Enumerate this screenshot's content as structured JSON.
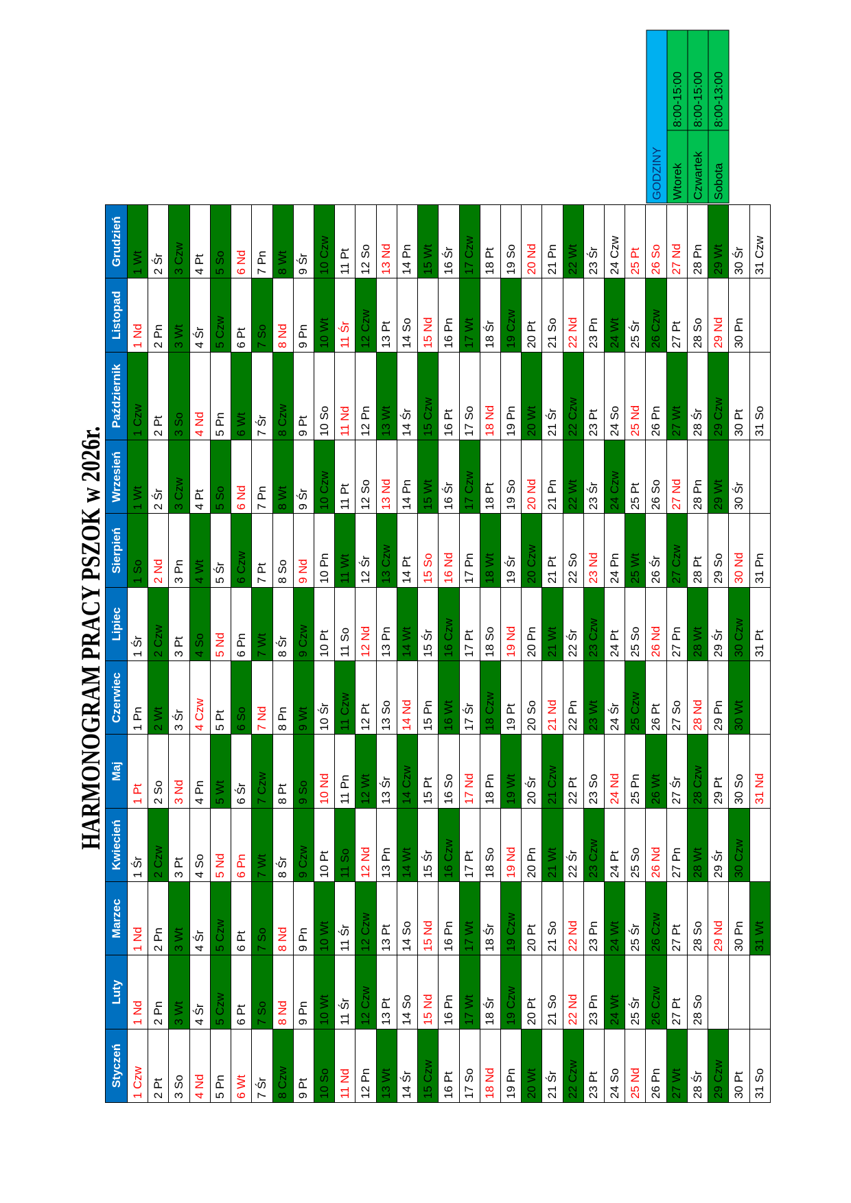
{
  "title": "HARMONOGRAM PRACY PSZOK w 2026r.",
  "colors": {
    "header": "#0070c0",
    "open_day": "#007a00",
    "holiday_text": "#ff0000",
    "hours_header": "#00b0f0",
    "hours_rows": "#00c050"
  },
  "hours": {
    "header": "GODZINY",
    "rows": [
      {
        "day": "Wtorek",
        "time": "8:00-15:00"
      },
      {
        "day": "Czwartek",
        "time": "8:00-15:00"
      },
      {
        "day": "Sobota",
        "time": "8:00-13:00"
      }
    ]
  },
  "months": [
    {
      "name": "Styczeń",
      "days": [
        "1 Czw",
        "2 Pt",
        "3 So",
        "4 Nd",
        "5 Pn",
        "6 Wt",
        "7 Śr",
        "8 Czw",
        "9 Pt",
        "10 So",
        "11 Nd",
        "12 Pn",
        "13 Wt",
        "14 Śr",
        "15 Czw",
        "16 Pt",
        "17 So",
        "18 Nd",
        "19 Pn",
        "20 Wt",
        "21 Śr",
        "22 Czw",
        "23 Pt",
        "24 So",
        "25 Nd",
        "26 Pn",
        "27 Wt",
        "28 Śr",
        "29 Czw",
        "30 Pt",
        "31 So"
      ],
      "green": [
        8,
        10,
        13,
        15,
        20,
        22,
        27,
        29
      ],
      "red": [
        1,
        4,
        6,
        11,
        18,
        25
      ]
    },
    {
      "name": "Luty",
      "days": [
        "1 Nd",
        "2 Pn",
        "3 Wt",
        "4 Śr",
        "5 Czw",
        "6 Pt",
        "7 So",
        "8 Nd",
        "9 Pn",
        "10 Wt",
        "11 Śr",
        "12 Czw",
        "13 Pt",
        "14 So",
        "15 Nd",
        "16 Pn",
        "17 Wt",
        "18 Śr",
        "19 Czw",
        "20 Pt",
        "21 So",
        "22 Nd",
        "23 Pn",
        "24 Wt",
        "25 Śr",
        "26 Czw",
        "27 Pt",
        "28 So"
      ],
      "green": [
        3,
        5,
        7,
        10,
        12,
        17,
        19,
        24,
        26
      ],
      "red": [
        1,
        8,
        15,
        22
      ]
    },
    {
      "name": "Marzec",
      "days": [
        "1 Nd",
        "2 Pn",
        "3 Wt",
        "4 Śr",
        "5 Czw",
        "6 Pt",
        "7 So",
        "8 Nd",
        "9 Pn",
        "10 Wt",
        "11 Śr",
        "12 Czw",
        "13 Pt",
        "14 So",
        "15 Nd",
        "16 Pn",
        "17 Wt",
        "18 Śr",
        "19 Czw",
        "20 Pt",
        "21 So",
        "22 Nd",
        "23 Pn",
        "24 Wt",
        "25 Śr",
        "26 Czw",
        "27 Pt",
        "28 So",
        "29 Nd",
        "30 Pn",
        "31 Wt"
      ],
      "green": [
        3,
        5,
        7,
        10,
        12,
        17,
        19,
        24,
        26,
        31
      ],
      "red": [
        1,
        8,
        15,
        22,
        29
      ]
    },
    {
      "name": "Kwiecień",
      "days": [
        "1 Śr",
        "2 Czw",
        "3 Pt",
        "4 So",
        "5 Nd",
        "6 Pn",
        "7 Wt",
        "8 Śr",
        "9 Czw",
        "10 Pt",
        "11 So",
        "12 Nd",
        "13 Pn",
        "14 Wt",
        "15 Śr",
        "16 Czw",
        "17 Pt",
        "18 So",
        "19 Nd",
        "20 Pn",
        "21 Wt",
        "22 Śr",
        "23 Czw",
        "24 Pt",
        "25 So",
        "26 Nd",
        "27 Pn",
        "28 Wt",
        "29 Śr",
        "30 Czw"
      ],
      "green": [
        2,
        7,
        9,
        11,
        14,
        16,
        21,
        23,
        28,
        30
      ],
      "red": [
        5,
        6,
        12,
        19,
        26
      ]
    },
    {
      "name": "Maj",
      "days": [
        "1 Pt",
        "2 So",
        "3 Nd",
        "4 Pn",
        "5 Wt",
        "6 Śr",
        "7 Czw",
        "8 Pt",
        "9 So",
        "10 Nd",
        "11 Pn",
        "12 Wt",
        "13 Śr",
        "14 Czw",
        "15 Pt",
        "16 So",
        "17 Nd",
        "18 Pn",
        "19 Wt",
        "20 Śr",
        "21 Czw",
        "22 Pt",
        "23 So",
        "24 Nd",
        "25 Pn",
        "26 Wt",
        "27 Śr",
        "28 Czw",
        "29 Pt",
        "30 So",
        "31 Nd"
      ],
      "green": [
        5,
        7,
        9,
        12,
        14,
        19,
        21,
        26,
        28
      ],
      "red": [
        1,
        3,
        10,
        17,
        24,
        31
      ]
    },
    {
      "name": "Czerwiec",
      "days": [
        "1 Pn",
        "2 Wt",
        "3 Śr",
        "4 Czw",
        "5 Pt",
        "6 So",
        "7 Nd",
        "8 Pn",
        "9 Wt",
        "10 Śr",
        "11 Czw",
        "12 Pt",
        "13 So",
        "14 Nd",
        "15 Pn",
        "16 Wt",
        "17 Śr",
        "18 Czw",
        "19 Pt",
        "20 So",
        "21 Nd",
        "22 Pn",
        "23 Wt",
        "24 Śr",
        "25 Czw",
        "26 Pt",
        "27 So",
        "28 Nd",
        "29 Pn",
        "30 Wt"
      ],
      "green": [
        2,
        6,
        9,
        11,
        16,
        18,
        23,
        25,
        30
      ],
      "red": [
        4,
        7,
        14,
        21,
        28
      ]
    },
    {
      "name": "Lipiec",
      "days": [
        "1 Śr",
        "2 Czw",
        "3 Pt",
        "4 So",
        "5 Nd",
        "6 Pn",
        "7 Wt",
        "8 Śr",
        "9 Czw",
        "10 Pt",
        "11 So",
        "12 Nd",
        "13 Pn",
        "14 Wt",
        "15 Śr",
        "16 Czw",
        "17 Pt",
        "18 So",
        "19 Nd",
        "20 Pn",
        "21 Wt",
        "22 Śr",
        "23 Czw",
        "24 Pt",
        "25 So",
        "26 Nd",
        "27 Pn",
        "28 Wt",
        "29 Śr",
        "30 Czw",
        "31 Pt"
      ],
      "green": [
        2,
        4,
        7,
        9,
        14,
        16,
        21,
        23,
        28,
        30
      ],
      "red": [
        5,
        12,
        19,
        26
      ]
    },
    {
      "name": "Sierpień",
      "days": [
        "1 So",
        "2 Nd",
        "3 Pn",
        "4 Wt",
        "5 Śr",
        "6 Czw",
        "7 Pt",
        "8 So",
        "9 Nd",
        "10 Pn",
        "11 Wt",
        "12 Śr",
        "13 Czw",
        "14 Pt",
        "15 So",
        "16 Nd",
        "17 Pn",
        "18 Wt",
        "19 Śr",
        "20 Czw",
        "21 Pt",
        "22 So",
        "23 Nd",
        "24 Pn",
        "25 Wt",
        "26 Śr",
        "27 Czw",
        "28 Pt",
        "29 So",
        "30 Nd",
        "31 Pn"
      ],
      "green": [
        1,
        4,
        6,
        11,
        13,
        18,
        20,
        25,
        27
      ],
      "red": [
        2,
        9,
        15,
        16,
        23,
        30
      ]
    },
    {
      "name": "Wrzesień",
      "days": [
        "1 Wt",
        "2 Śr",
        "3 Czw",
        "4 Pt",
        "5 So",
        "6 Nd",
        "7 Pn",
        "8 Wt",
        "9 Śr",
        "10 Czw",
        "11 Pt",
        "12 So",
        "13 Nd",
        "14 Pn",
        "15 Wt",
        "16 Śr",
        "17 Czw",
        "18 Pt",
        "19 So",
        "20 Nd",
        "21 Pn",
        "22 Wt",
        "23 Śr",
        "24 Czw",
        "25 Pt",
        "26 So",
        "27 Nd",
        "28 Pn",
        "29 Wt",
        "30 Śr"
      ],
      "green": [
        1,
        3,
        5,
        8,
        10,
        15,
        17,
        22,
        24,
        29
      ],
      "red": [
        6,
        13,
        20,
        27
      ]
    },
    {
      "name": "Październik",
      "days": [
        "1 Czw",
        "2 Pt",
        "3 So",
        "4 Nd",
        "5 Pn",
        "6 Wt",
        "7 Śr",
        "8 Czw",
        "9 Pt",
        "10 So",
        "11 Nd",
        "12 Pn",
        "13 Wt",
        "14 Śr",
        "15 Czw",
        "16 Pt",
        "17 So",
        "18 Nd",
        "19 Pn",
        "20 Wt",
        "21 Śr",
        "22 Czw",
        "23 Pt",
        "24 So",
        "25 Nd",
        "26 Pn",
        "27 Wt",
        "28 Śr",
        "29 Czw",
        "30 Pt",
        "31 So"
      ],
      "green": [
        1,
        3,
        6,
        8,
        13,
        15,
        20,
        22,
        27,
        29
      ],
      "red": [
        4,
        11,
        18,
        25
      ]
    },
    {
      "name": "Listopad",
      "days": [
        "1 Nd",
        "2 Pn",
        "3 Wt",
        "4 Śr",
        "5 Czw",
        "6 Pt",
        "7 So",
        "8 Nd",
        "9 Pn",
        "10 Wt",
        "11 Śr",
        "12 Czw",
        "13 Pt",
        "14 So",
        "15 Nd",
        "16 Pn",
        "17 Wt",
        "18 Śr",
        "19 Czw",
        "20 Pt",
        "21 So",
        "22 Nd",
        "23 Pn",
        "24 Wt",
        "25 Śr",
        "26 Czw",
        "27 Pt",
        "28 So",
        "29 Nd",
        "30 Pn"
      ],
      "green": [
        3,
        5,
        7,
        10,
        12,
        17,
        19,
        24,
        26
      ],
      "red": [
        1,
        8,
        11,
        15,
        22,
        29
      ]
    },
    {
      "name": "Grudzień",
      "days": [
        "1 Wt",
        "2 Śr",
        "3 Czw",
        "4 Pt",
        "5 So",
        "6 Nd",
        "7 Pn",
        "8 Wt",
        "9 Śr",
        "10 Czw",
        "11 Pt",
        "12 So",
        "13 Nd",
        "14 Pn",
        "15 Wt",
        "16 Śr",
        "17 Czw",
        "18 Pt",
        "19 So",
        "20 Nd",
        "21 Pn",
        "22 Wt",
        "23 Śr",
        "24 Czw",
        "25 Pt",
        "26 So",
        "27 Nd",
        "28 Pn",
        "29 Wt",
        "30 Śr",
        "31 Czw"
      ],
      "green": [
        1,
        3,
        5,
        8,
        10,
        15,
        17,
        22,
        29
      ],
      "red": [
        6,
        13,
        20,
        25,
        26,
        27
      ]
    }
  ]
}
